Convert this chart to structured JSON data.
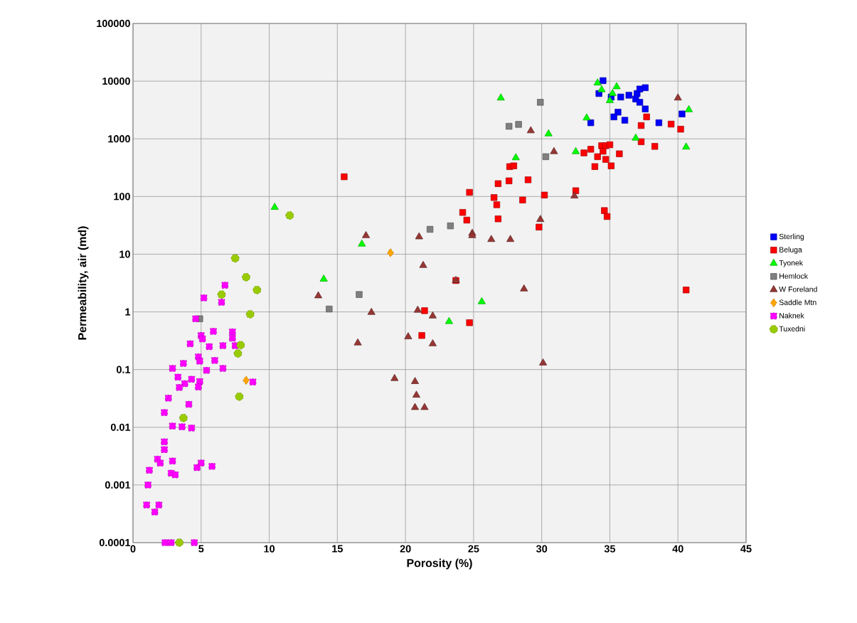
{
  "chart_data": {
    "type": "scatter",
    "xlabel": "Porosity (%)",
    "ylabel": "Permeability, air (md)",
    "log": "y",
    "grid": true,
    "legend": "right",
    "xlim": [
      0,
      45
    ],
    "xticks": [
      0,
      5,
      10,
      15,
      20,
      25,
      30,
      35,
      40,
      45
    ],
    "ylim": [
      0.0001,
      100000
    ],
    "yticks": [
      0.0001,
      0.001,
      0.01,
      0.1,
      1,
      10,
      100,
      1000,
      10000,
      100000
    ],
    "series": [
      {
        "name": "Sterling",
        "color": "#0000ff",
        "marker": "square",
        "x": [
          34.5,
          34.2,
          35.1,
          35.8,
          36.4,
          37.0,
          37.2,
          37.6,
          36.9,
          37.2,
          37.6,
          35.6,
          35.3,
          36.1,
          33.6,
          38.6,
          40.3
        ],
        "values": [
          10200,
          6100,
          5300,
          5300,
          5700,
          6100,
          7300,
          7700,
          4900,
          4300,
          3300,
          2900,
          2400,
          2100,
          1900,
          1900,
          2700
        ]
      },
      {
        "name": "Beluga",
        "color": "#ff0000",
        "marker": "square",
        "x": [
          15.5,
          21.4,
          21.2,
          23.7,
          24.2,
          24.5,
          24.7,
          24.7,
          26.5,
          26.7,
          26.8,
          26.8,
          27.6,
          29.0,
          27.65,
          27.95,
          28.6,
          29.8,
          30.2,
          32.5,
          33.6,
          33.1,
          34.4,
          34.7,
          35.0,
          34.1,
          34.7,
          35.7,
          33.9,
          35.1,
          34.5,
          34.6,
          34.8,
          37.7,
          37.3,
          39.5,
          40.2,
          37.3,
          38.3,
          40.6
        ],
        "values": [
          220,
          1.05,
          0.39,
          3.5,
          53,
          39,
          118,
          0.65,
          96,
          72,
          167,
          41,
          187,
          195,
          330,
          340,
          87,
          29.5,
          106,
          126,
          660,
          570,
          760,
          760,
          790,
          490,
          440,
          550,
          330,
          340,
          610,
          57,
          45,
          2400,
          1700,
          1800,
          1470,
          890,
          740,
          2.4
        ]
      },
      {
        "name": "Tyonek",
        "color": "#00ff00",
        "marker": "triangle",
        "x": [
          10.4,
          14.0,
          16.8,
          25.6,
          23.2,
          27.0,
          28.1,
          30.5,
          32.5,
          33.3,
          34.1,
          34.4,
          35.0,
          35.2,
          35.5,
          36.9,
          40.6,
          40.8
        ],
        "values": [
          65,
          3.7,
          15,
          1.5,
          0.68,
          5100,
          470,
          1220,
          600,
          2300,
          9300,
          7100,
          4600,
          6100,
          8000,
          1030,
          720,
          3200
        ]
      },
      {
        "name": "Hemlock",
        "color": "#7f7f7f",
        "marker": "square",
        "x": [
          4.9,
          14.4,
          16.6,
          21.8,
          23.3,
          27.6,
          28.3,
          29.9,
          30.3
        ],
        "values": [
          0.76,
          1.12,
          2.0,
          27,
          31,
          1650,
          1780,
          4300,
          490
        ]
      },
      {
        "name": "W Foreland",
        "color": "#953735",
        "marker": "triangle",
        "x": [
          13.6,
          16.5,
          17.1,
          17.5,
          19.2,
          20.2,
          20.7,
          20.8,
          20.7,
          21.4,
          20.9,
          21.0,
          21.3,
          22.0,
          22.0,
          23.7,
          24.9,
          24.9,
          26.3,
          27.7,
          28.7,
          29.2,
          29.9,
          30.1,
          30.9,
          32.4,
          40.0
        ],
        "values": [
          1.9,
          0.29,
          21,
          0.98,
          0.07,
          0.37,
          0.062,
          0.036,
          0.022,
          0.022,
          1.07,
          20,
          6.4,
          0.85,
          0.28,
          3.5,
          23,
          21,
          18,
          18,
          2.5,
          1380,
          40,
          0.13,
          600,
          102,
          5100
        ]
      },
      {
        "name": "Saddle Mtn",
        "color": "#ffa500",
        "marker": "diamond",
        "x": [
          18.9,
          8.3
        ],
        "values": [
          10.6,
          0.065
        ]
      },
      {
        "name": "Naknek",
        "color": "#ff00ff",
        "marker": "square",
        "x": [
          6.75,
          5.2,
          6.5,
          4.6,
          5.9,
          5.0,
          7.3,
          7.3,
          5.1,
          4.2,
          5.6,
          6.6,
          7.5,
          4.8,
          4.9,
          6.0,
          3.7,
          2.9,
          5.4,
          6.6,
          3.3,
          4.3,
          4.9,
          3.8,
          3.4,
          4.8,
          8.8,
          2.6,
          4.1,
          2.3,
          2.9,
          3.6,
          4.3,
          2.3,
          2.3,
          1.8,
          2.0,
          2.9,
          1.2,
          2.8,
          3.1,
          4.7,
          5.0,
          5.8,
          1.1,
          1.0,
          1.9,
          1.6,
          2.35,
          2.8,
          4.5
        ],
        "values": [
          2.9,
          1.75,
          1.47,
          0.76,
          0.46,
          0.39,
          0.45,
          0.35,
          0.34,
          0.28,
          0.25,
          0.26,
          0.26,
          0.166,
          0.14,
          0.144,
          0.128,
          0.105,
          0.097,
          0.105,
          0.074,
          0.068,
          0.062,
          0.057,
          0.049,
          0.05,
          0.061,
          0.032,
          0.025,
          0.018,
          0.0105,
          0.0102,
          0.0097,
          0.0056,
          0.0041,
          0.0028,
          0.0024,
          0.0026,
          0.0018,
          0.0016,
          0.0015,
          0.002,
          0.0024,
          0.0021,
          0.001,
          0.00045,
          0.00045,
          0.00034,
          0.0001,
          0.0001,
          0.0001
        ]
      },
      {
        "name": "Tuxedni",
        "color": "#99cc00",
        "marker": "circle",
        "x": [
          11.5,
          7.5,
          8.3,
          9.1,
          6.5,
          8.6,
          7.9,
          7.7,
          7.8,
          3.7,
          3.4
        ],
        "values": [
          47,
          8.5,
          4.0,
          2.4,
          2.0,
          0.91,
          0.265,
          0.19,
          0.034,
          0.0145,
          0.0001
        ]
      }
    ]
  }
}
